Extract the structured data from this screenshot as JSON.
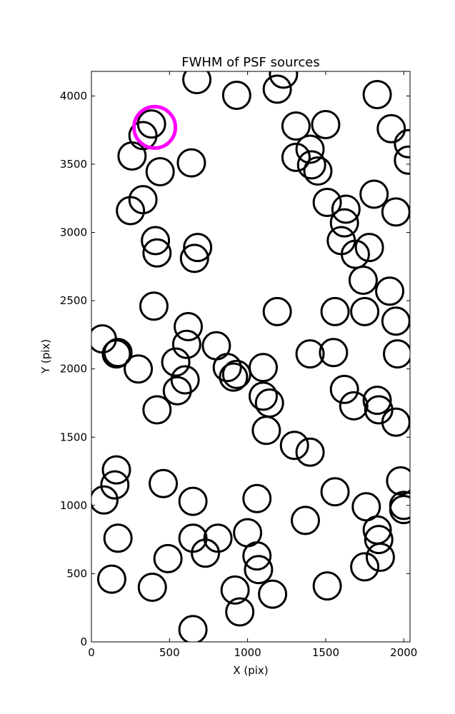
{
  "chart_data": {
    "type": "scatter",
    "title": "FWHM of PSF sources",
    "xlabel": "X (pix)",
    "ylabel": "Y (pix)",
    "xlim": [
      0,
      2040
    ],
    "ylim": [
      0,
      4180
    ],
    "xticks": [
      0,
      500,
      1000,
      1500,
      2000
    ],
    "yticks": [
      0,
      500,
      1000,
      1500,
      2000,
      2500,
      3000,
      3500,
      4000
    ],
    "grid": false,
    "marker": "open circle",
    "series": [
      {
        "color": "#000000",
        "points": [
          [
            675,
            4120
          ],
          [
            930,
            4005
          ],
          [
            1190,
            4050
          ],
          [
            1230,
            4160
          ],
          [
            1830,
            4010
          ],
          [
            330,
            3710
          ],
          [
            385,
            3795
          ],
          [
            260,
            3560
          ],
          [
            640,
            3510
          ],
          [
            440,
            3445
          ],
          [
            1310,
            3780
          ],
          [
            1500,
            3790
          ],
          [
            1400,
            3610
          ],
          [
            1310,
            3550
          ],
          [
            1410,
            3495
          ],
          [
            1450,
            3450
          ],
          [
            1920,
            3760
          ],
          [
            2030,
            3650
          ],
          [
            2030,
            3530
          ],
          [
            1810,
            3280
          ],
          [
            1950,
            3150
          ],
          [
            1510,
            3220
          ],
          [
            1630,
            3170
          ],
          [
            1620,
            3070
          ],
          [
            1600,
            2940
          ],
          [
            1690,
            2840
          ],
          [
            1780,
            2890
          ],
          [
            1740,
            2650
          ],
          [
            1910,
            2570
          ],
          [
            1950,
            2350
          ],
          [
            1960,
            2110
          ],
          [
            1750,
            2420
          ],
          [
            1560,
            2420
          ],
          [
            1550,
            2120
          ],
          [
            1400,
            2110
          ],
          [
            1190,
            2420
          ],
          [
            1620,
            1850
          ],
          [
            1680,
            1730
          ],
          [
            1830,
            1770
          ],
          [
            1840,
            1700
          ],
          [
            1950,
            1610
          ],
          [
            1980,
            1180
          ],
          [
            2000,
            1000
          ],
          [
            2000,
            970
          ],
          [
            1760,
            990
          ],
          [
            1830,
            820
          ],
          [
            1840,
            750
          ],
          [
            1850,
            620
          ],
          [
            1750,
            550
          ],
          [
            1560,
            1100
          ],
          [
            1370,
            890
          ],
          [
            1510,
            410
          ],
          [
            1400,
            1390
          ],
          [
            1300,
            1440
          ],
          [
            1120,
            1550
          ],
          [
            1140,
            1750
          ],
          [
            1100,
            1800
          ],
          [
            1100,
            2010
          ],
          [
            930,
            1960
          ],
          [
            910,
            1940
          ],
          [
            870,
            2010
          ],
          [
            800,
            2170
          ],
          [
            620,
            2310
          ],
          [
            610,
            2180
          ],
          [
            540,
            2050
          ],
          [
            600,
            1920
          ],
          [
            550,
            1840
          ],
          [
            420,
            1700
          ],
          [
            400,
            2460
          ],
          [
            300,
            2000
          ],
          [
            170,
            2120
          ],
          [
            160,
            2110
          ],
          [
            70,
            2220
          ],
          [
            250,
            3160
          ],
          [
            330,
            3240
          ],
          [
            410,
            2940
          ],
          [
            420,
            2850
          ],
          [
            680,
            2890
          ],
          [
            660,
            2810
          ],
          [
            160,
            1260
          ],
          [
            150,
            1150
          ],
          [
            80,
            1040
          ],
          [
            170,
            760
          ],
          [
            130,
            460
          ],
          [
            390,
            400
          ],
          [
            490,
            610
          ],
          [
            460,
            1160
          ],
          [
            650,
            1030
          ],
          [
            650,
            760
          ],
          [
            730,
            650
          ],
          [
            810,
            760
          ],
          [
            1000,
            800
          ],
          [
            1060,
            1050
          ],
          [
            1060,
            630
          ],
          [
            1070,
            530
          ],
          [
            920,
            380
          ],
          [
            950,
            220
          ],
          [
            1160,
            350
          ],
          [
            650,
            90
          ]
        ]
      },
      {
        "color": "#ff00ff",
        "points": [
          [
            405,
            3770
          ]
        ]
      }
    ]
  }
}
